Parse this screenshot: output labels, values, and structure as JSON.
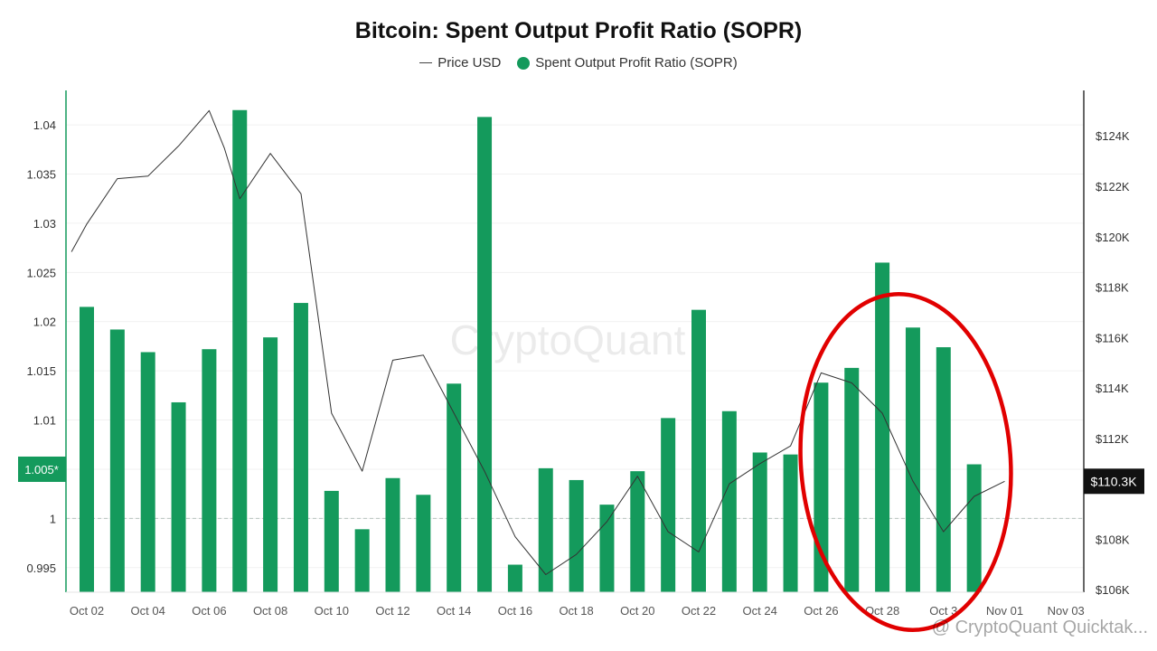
{
  "chart_data": {
    "type": "bar",
    "title": "Bitcoin: Spent Output Profit Ratio (SOPR)",
    "legend": {
      "line_label": "Price USD",
      "bar_label": "Spent Output Profit Ratio (SOPR)",
      "position": "top-center"
    },
    "watermark": "CryptoQuant",
    "attribution": "@ CryptoQuant Quicktak...",
    "colors": {
      "bar": "#149a5c",
      "line": "#333333",
      "axis": "#149a5c",
      "annotation": "#e10000"
    },
    "left_axis": {
      "ylim": [
        0.9925,
        1.0435
      ],
      "ticks": [
        0.995,
        1,
        1.005,
        1.01,
        1.015,
        1.02,
        1.025,
        1.03,
        1.035,
        1.04
      ],
      "tick_labels": [
        "0.995",
        "1",
        "",
        "1.01",
        "1.015",
        "1.02",
        "1.025",
        "1.03",
        "1.035",
        "1.04"
      ],
      "current_marker": {
        "value": 1.005,
        "label": "1.005*"
      },
      "baseline": 1
    },
    "right_axis": {
      "ylim": [
        105900,
        125800
      ],
      "ticks": [
        106000,
        108000,
        110000,
        112000,
        114000,
        116000,
        118000,
        120000,
        122000,
        124000
      ],
      "tick_labels": [
        "$106K",
        "$108K",
        "",
        "$112K",
        "$114K",
        "$116K",
        "$118K",
        "$120K",
        "$122K",
        "$124K"
      ],
      "current_marker": {
        "value": 110300,
        "label": "$110.3K"
      }
    },
    "x_labels": [
      "Oct 02",
      "Oct 04",
      "Oct 06",
      "Oct 08",
      "Oct 10",
      "Oct 12",
      "Oct 14",
      "Oct 16",
      "Oct 18",
      "Oct 20",
      "Oct 22",
      "Oct 24",
      "Oct 26",
      "Oct 28",
      "Oct 3",
      "Nov 01",
      "Nov 03"
    ],
    "x_days": [
      2,
      4,
      6,
      8,
      10,
      12,
      14,
      16,
      18,
      20,
      22,
      24,
      26,
      28,
      30,
      32,
      34
    ],
    "series": [
      {
        "name": "Spent Output Profit Ratio (SOPR)",
        "kind": "bar",
        "days": [
          2,
          3,
          4,
          5,
          6,
          7,
          8,
          9,
          10,
          11,
          12,
          13,
          14,
          15,
          16,
          17,
          18,
          19,
          20,
          21,
          22,
          23,
          24,
          25,
          26,
          27,
          28,
          29,
          30,
          31
        ],
        "values": [
          1.0215,
          1.0192,
          1.0169,
          1.0118,
          1.0172,
          1.0415,
          1.0184,
          1.0219,
          1.0028,
          0.9989,
          1.0041,
          1.0024,
          1.0137,
          1.0408,
          0.9953,
          1.0051,
          1.0039,
          1.0014,
          1.0048,
          1.0102,
          1.0212,
          1.0109,
          1.0067,
          1.0065,
          1.0138,
          1.0153,
          1.026,
          1.0194,
          1.0174,
          1.0055
        ]
      },
      {
        "name": "Price USD",
        "kind": "line",
        "days": [
          1.5,
          2,
          3,
          4,
          5,
          6,
          6.5,
          7,
          8,
          9,
          10,
          11,
          12,
          13,
          14,
          15,
          16,
          17,
          18,
          19,
          20,
          21,
          22,
          23,
          24,
          25,
          26,
          27,
          28,
          29,
          30,
          30.5,
          31,
          32
        ],
        "values": [
          119400,
          120500,
          122300,
          122400,
          123600,
          125000,
          123500,
          121500,
          123300,
          121700,
          113000,
          110700,
          115100,
          115300,
          113000,
          110700,
          108100,
          106600,
          107400,
          108700,
          110500,
          108300,
          107500,
          110200,
          111000,
          111700,
          114600,
          114200,
          113000,
          110300,
          108300,
          109000,
          109700,
          110300
        ]
      }
    ],
    "annotation": {
      "shape": "ellipse",
      "note": "red circle highlighting late-October SOPR bars"
    }
  }
}
